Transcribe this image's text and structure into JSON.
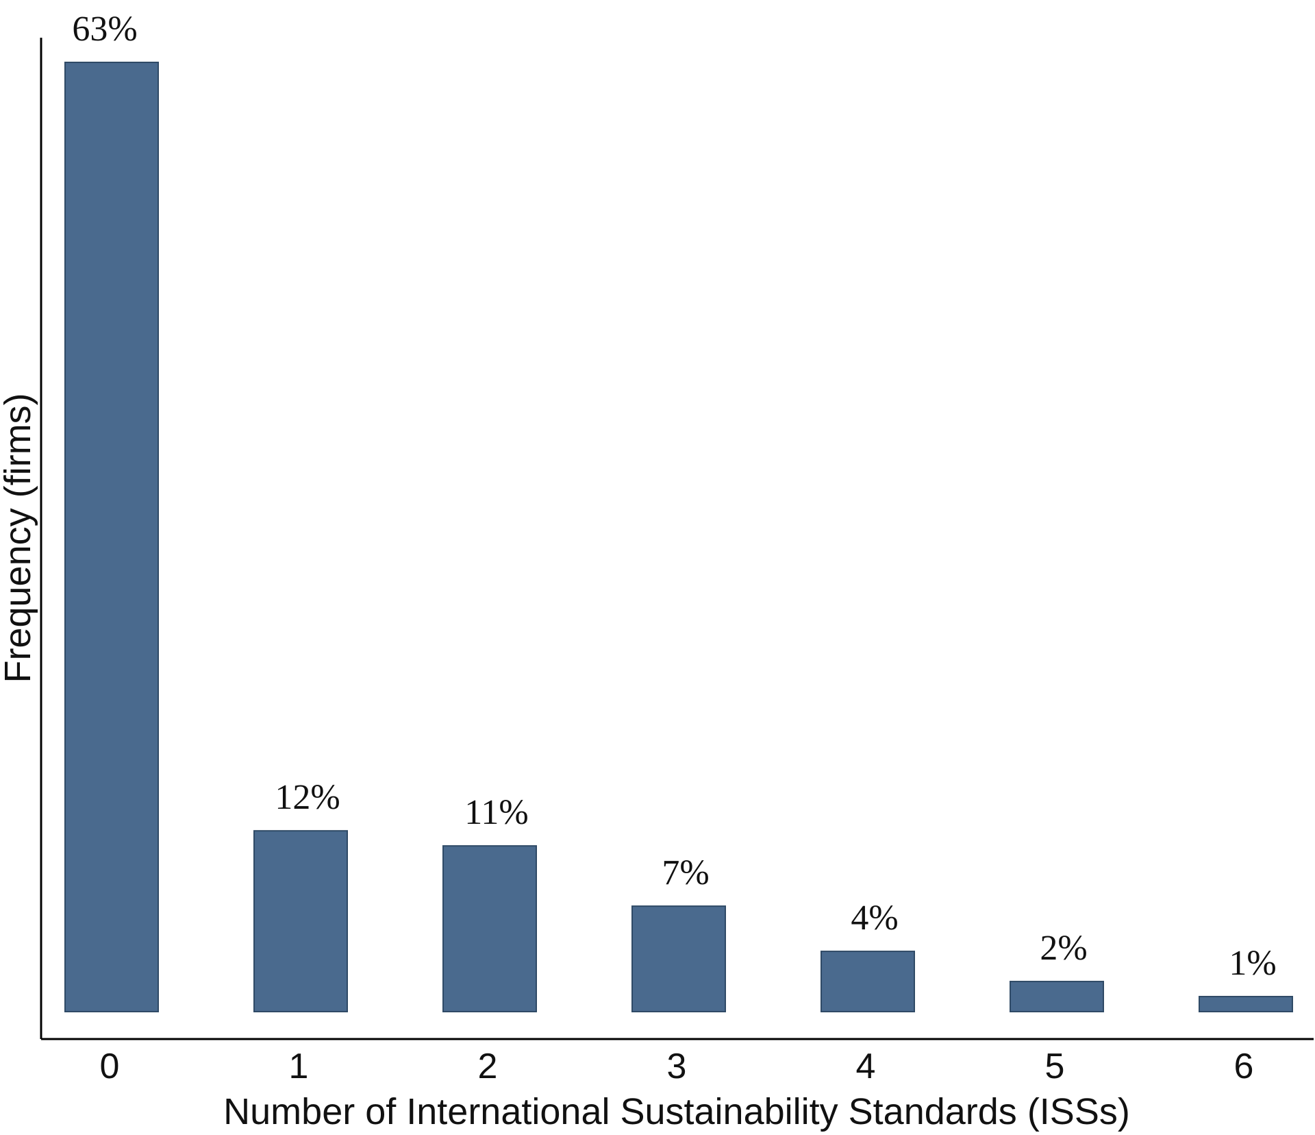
{
  "chart_data": {
    "type": "bar",
    "categories": [
      "0",
      "1",
      "2",
      "3",
      "4",
      "5",
      "6"
    ],
    "values": [
      63,
      12,
      11,
      7,
      4,
      2,
      1
    ],
    "data_labels": [
      "63%",
      "12%",
      "11%",
      "7%",
      "4%",
      "2%",
      "1%"
    ],
    "title": "",
    "xlabel": "Number of International Sustainability Standards (ISSs)",
    "ylabel": "Frequency (firms)",
    "ylim": [
      0,
      63
    ],
    "grid": false,
    "legend": "none",
    "bar_color": "#4a6a8e"
  }
}
